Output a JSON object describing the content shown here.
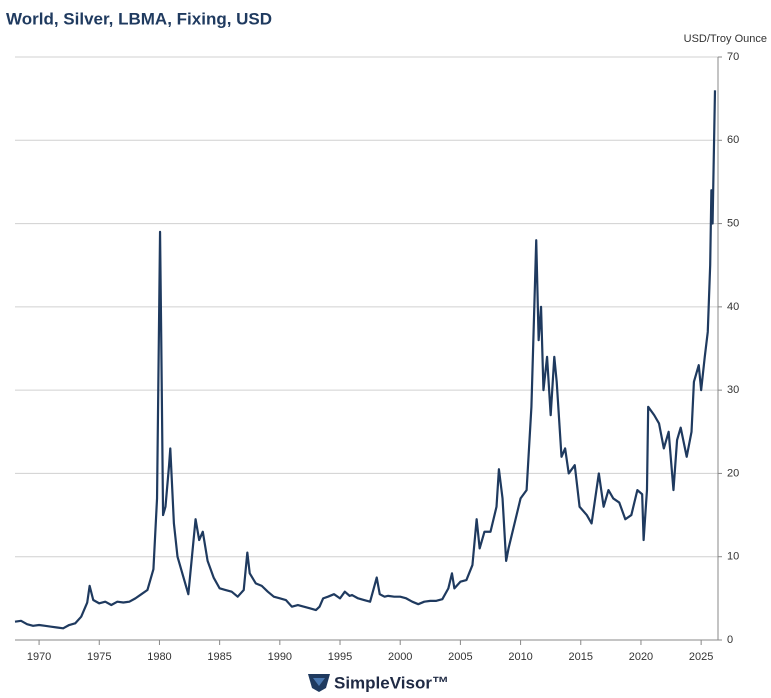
{
  "chart_data": {
    "type": "line",
    "title": "World, Silver, LBMA, Fixing, USD",
    "y_label": "USD/Troy Ounce",
    "logo": "SimpleVisor™",
    "x": [
      1968,
      1968.5,
      1969,
      1969.5,
      1970,
      1970.5,
      1971,
      1971.5,
      1972,
      1972.5,
      1973,
      1973.5,
      1974,
      1974.2,
      1974.5,
      1975,
      1975.5,
      1976,
      1976.5,
      1977,
      1977.5,
      1978,
      1978.5,
      1979,
      1979.5,
      1979.8,
      1980.05,
      1980.15,
      1980.3,
      1980.5,
      1980.8,
      1980.9,
      1981.2,
      1981.5,
      1982,
      1982.4,
      1982.7,
      1983,
      1983.3,
      1983.6,
      1984,
      1984.5,
      1985,
      1985.5,
      1986,
      1986.5,
      1987,
      1987.3,
      1987.5,
      1988,
      1988.5,
      1989,
      1989.5,
      1990,
      1990.5,
      1991,
      1991.5,
      1992,
      1992.5,
      1993,
      1993.3,
      1993.6,
      1994,
      1994.5,
      1995,
      1995.4,
      1995.8,
      1996,
      1996.5,
      1997,
      1997.5,
      1998.05,
      1998.3,
      1998.7,
      1999,
      1999.5,
      2000,
      2000.5,
      2001,
      2001.5,
      2002,
      2002.5,
      2003,
      2003.5,
      2004,
      2004.3,
      2004.5,
      2005,
      2005.5,
      2006,
      2006.35,
      2006.6,
      2007,
      2007.5,
      2008,
      2008.2,
      2008.5,
      2008.8,
      2009,
      2009.5,
      2010,
      2010.5,
      2010.9,
      2011.3,
      2011.5,
      2011.7,
      2011.9,
      2012.2,
      2012.5,
      2012.8,
      2013,
      2013.4,
      2013.7,
      2014,
      2014.5,
      2014.9,
      2015.5,
      2015.9,
      2016.5,
      2016.9,
      2017.3,
      2017.7,
      2018.2,
      2018.7,
      2019.2,
      2019.7,
      2020.1,
      2020.22,
      2020.5,
      2020.6,
      2021.1,
      2021.5,
      2021.9,
      2022.3,
      2022.7,
      2023,
      2023.3,
      2023.8,
      2024.2,
      2024.4,
      2024.8,
      2025,
      2025.3,
      2025.55,
      2025.75,
      2025.85,
      2025.95,
      2026.15
    ],
    "series": [
      {
        "name": "Silver",
        "color": "#1f3a5f",
        "values": [
          2.2,
          2.3,
          1.9,
          1.7,
          1.8,
          1.7,
          1.6,
          1.5,
          1.4,
          1.8,
          2.0,
          2.8,
          4.5,
          6.5,
          4.8,
          4.4,
          4.6,
          4.2,
          4.6,
          4.5,
          4.6,
          5.0,
          5.5,
          6.0,
          8.5,
          17,
          49,
          36,
          15,
          16,
          21,
          23,
          14,
          10,
          7.5,
          5.5,
          10,
          14.5,
          12,
          13,
          9.5,
          7.5,
          6.2,
          6.0,
          5.8,
          5.2,
          6,
          10.5,
          8,
          6.8,
          6.5,
          5.8,
          5.2,
          5.0,
          4.8,
          4.0,
          4.2,
          4.0,
          3.8,
          3.6,
          4.0,
          5.0,
          5.2,
          5.5,
          5.0,
          5.8,
          5.3,
          5.4,
          5.0,
          4.8,
          4.6,
          7.5,
          5.5,
          5.2,
          5.3,
          5.2,
          5.2,
          5.0,
          4.6,
          4.3,
          4.6,
          4.7,
          4.7,
          4.9,
          6.2,
          8.0,
          6.2,
          7.0,
          7.2,
          9.0,
          14.5,
          11,
          13,
          13,
          16,
          20.5,
          17,
          9.5,
          11,
          14,
          17,
          18,
          28,
          48,
          36,
          40,
          30,
          34,
          27,
          34,
          31,
          22,
          23,
          20,
          21,
          16,
          15,
          14,
          20,
          16,
          18,
          17,
          16.5,
          14.5,
          15,
          18,
          17.5,
          12,
          18,
          28,
          27,
          26,
          23,
          25,
          18,
          24,
          25.5,
          22,
          25,
          31,
          33,
          30,
          34,
          37,
          45,
          54,
          50,
          66
        ]
      }
    ],
    "xlim": [
      1968,
      2026.4
    ],
    "xticks": [
      1970,
      1975,
      1980,
      1985,
      1990,
      1995,
      2000,
      2005,
      2010,
      2015,
      2020,
      2025
    ],
    "ylim": [
      0,
      70
    ],
    "yticks": [
      0,
      10,
      20,
      30,
      40,
      50,
      60,
      70
    ],
    "grid": true
  }
}
